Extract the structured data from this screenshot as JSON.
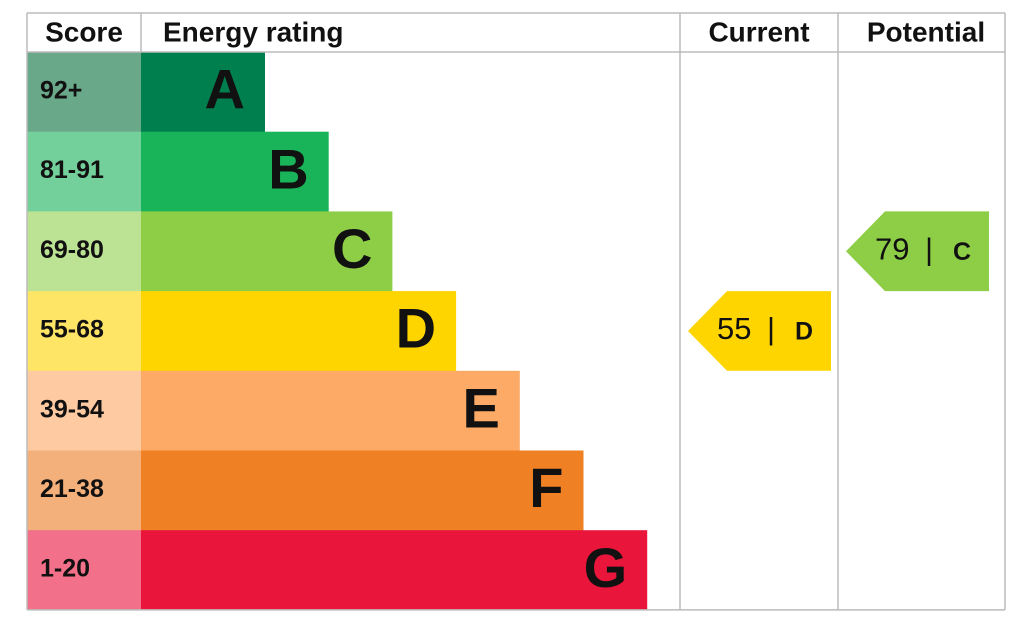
{
  "header": {
    "score": "Score",
    "rating": "Energy rating",
    "current": "Current",
    "potential": "Potential"
  },
  "bands": [
    {
      "score": "92+",
      "letter": "A",
      "color": "#007f4e",
      "score_color": "#6aa88a"
    },
    {
      "score": "81-91",
      "letter": "B",
      "color": "#19b459",
      "score_color": "#74d09b"
    },
    {
      "score": "69-80",
      "letter": "C",
      "color": "#8dce46",
      "score_color": "#bce394"
    },
    {
      "score": "55-68",
      "letter": "D",
      "color": "#ffd500",
      "score_color": "#ffe566"
    },
    {
      "score": "39-54",
      "letter": "E",
      "color": "#fcaa65",
      "score_color": "#fdcaa2"
    },
    {
      "score": "21-38",
      "letter": "F",
      "color": "#ef8023",
      "score_color": "#f4b07b"
    },
    {
      "score": "1-20",
      "letter": "G",
      "color": "#e9153b",
      "score_color": "#f27089"
    }
  ],
  "current": {
    "value": 55,
    "separator": "|",
    "letter": "D"
  },
  "potential": {
    "value": 79,
    "separator": "|",
    "letter": "C"
  }
}
